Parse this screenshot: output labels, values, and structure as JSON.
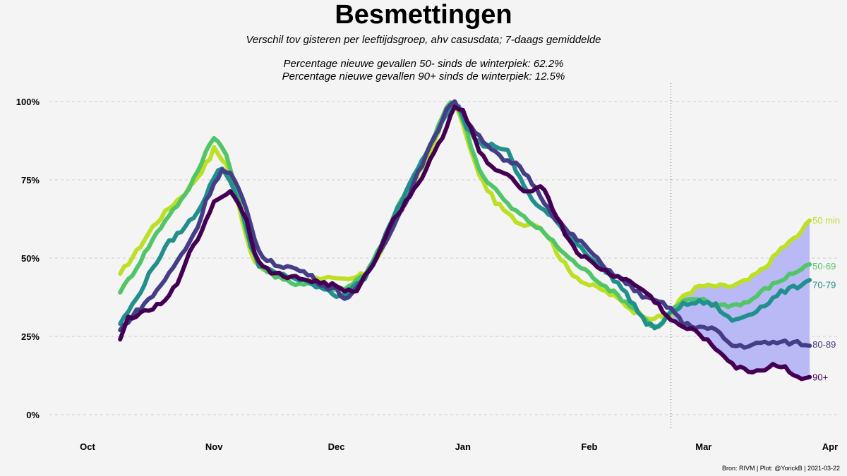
{
  "header": {
    "title": "Besmettingen",
    "subtitle": "Verschil tov gisteren per leeftijdsgroep, ahv casusdata; 7-daags gemiddelde",
    "note1": "Percentage nieuwe gevallen 50- sinds de winterpiek: 62.2%",
    "note2": "Percentage nieuwe gevallen 90+ sinds de winterpiek: 12.5%"
  },
  "footer": {
    "source": "Bron: RIVM | Plot: @YorickB  |  2021-03-22"
  },
  "colors": {
    "g50": "#bddf26",
    "g5069": "#52c569",
    "g7079": "#21908d",
    "g8089": "#433e85",
    "g90": "#440154",
    "ribbon": "#b3b3f5",
    "grid": "#cccccc"
  },
  "chart_data": {
    "type": "line",
    "title": "Besmettingen",
    "xlabel": "",
    "ylabel": "",
    "xlim": [
      0,
      182
    ],
    "ylim": [
      0,
      100
    ],
    "x_ticks": [
      {
        "label": "Oct",
        "value": 0
      },
      {
        "label": "Nov",
        "value": 31
      },
      {
        "label": "Dec",
        "value": 61
      },
      {
        "label": "Jan",
        "value": 92
      },
      {
        "label": "Feb",
        "value": 123
      },
      {
        "label": "Mar",
        "value": 151
      },
      {
        "label": "Apr",
        "value": 182
      }
    ],
    "y_ticks": [
      {
        "label": "0%",
        "value": 0
      },
      {
        "label": "25%",
        "value": 25
      },
      {
        "label": "50%",
        "value": 50
      },
      {
        "label": "75%",
        "value": 75
      },
      {
        "label": "100%",
        "value": 100
      }
    ],
    "vline_day": 143,
    "ribbon_from_day": 143,
    "ribbon_between": [
      "50 min",
      "90+"
    ],
    "series": [
      {
        "name": "50 min",
        "color_key": "g50",
        "end_label": "50 min",
        "points": [
          [
            8,
            45
          ],
          [
            12,
            52
          ],
          [
            16,
            60
          ],
          [
            20,
            66
          ],
          [
            24,
            71
          ],
          [
            27,
            76
          ],
          [
            30,
            82
          ],
          [
            31,
            85
          ],
          [
            34,
            80
          ],
          [
            36,
            72
          ],
          [
            38,
            62
          ],
          [
            40,
            52
          ],
          [
            42,
            47
          ],
          [
            46,
            45
          ],
          [
            50,
            44
          ],
          [
            54,
            43
          ],
          [
            58,
            44
          ],
          [
            61,
            43
          ],
          [
            64,
            43
          ],
          [
            68,
            45
          ],
          [
            72,
            52
          ],
          [
            76,
            65
          ],
          [
            80,
            74
          ],
          [
            84,
            84
          ],
          [
            87,
            94
          ],
          [
            89,
            99
          ],
          [
            91,
            97
          ],
          [
            93,
            88
          ],
          [
            95,
            80
          ],
          [
            97,
            74
          ],
          [
            100,
            68
          ],
          [
            103,
            64
          ],
          [
            106,
            61
          ],
          [
            110,
            61
          ],
          [
            113,
            57
          ],
          [
            115,
            52
          ],
          [
            118,
            46
          ],
          [
            122,
            42
          ],
          [
            126,
            40
          ],
          [
            130,
            37
          ],
          [
            134,
            33
          ],
          [
            138,
            31
          ],
          [
            141,
            31
          ],
          [
            143,
            32
          ],
          [
            146,
            38
          ],
          [
            150,
            41
          ],
          [
            154,
            41
          ],
          [
            158,
            41
          ],
          [
            162,
            43
          ],
          [
            166,
            47
          ],
          [
            170,
            53
          ],
          [
            174,
            57
          ],
          [
            177,
            62
          ]
        ]
      },
      {
        "name": "50-69",
        "color_key": "g5069",
        "end_label": "50-69",
        "points": [
          [
            8,
            39
          ],
          [
            12,
            47
          ],
          [
            16,
            56
          ],
          [
            20,
            64
          ],
          [
            24,
            70
          ],
          [
            27,
            78
          ],
          [
            29,
            84
          ],
          [
            31,
            89
          ],
          [
            34,
            83
          ],
          [
            36,
            74
          ],
          [
            38,
            64
          ],
          [
            40,
            54
          ],
          [
            42,
            48
          ],
          [
            46,
            44
          ],
          [
            50,
            42
          ],
          [
            54,
            42
          ],
          [
            58,
            41
          ],
          [
            61,
            40
          ],
          [
            64,
            41
          ],
          [
            68,
            45
          ],
          [
            72,
            54
          ],
          [
            76,
            66
          ],
          [
            80,
            76
          ],
          [
            84,
            86
          ],
          [
            87,
            95
          ],
          [
            89,
            100
          ],
          [
            91,
            98
          ],
          [
            93,
            90
          ],
          [
            95,
            82
          ],
          [
            97,
            76
          ],
          [
            100,
            72
          ],
          [
            103,
            67
          ],
          [
            106,
            64
          ],
          [
            109,
            61
          ],
          [
            112,
            58
          ],
          [
            115,
            54
          ],
          [
            118,
            50
          ],
          [
            122,
            46
          ],
          [
            126,
            42
          ],
          [
            130,
            38
          ],
          [
            134,
            34
          ],
          [
            137,
            30
          ],
          [
            139,
            28
          ],
          [
            141,
            29
          ],
          [
            143,
            33
          ],
          [
            146,
            36
          ],
          [
            150,
            37
          ],
          [
            154,
            35
          ],
          [
            158,
            35
          ],
          [
            162,
            36
          ],
          [
            166,
            40
          ],
          [
            170,
            43
          ],
          [
            174,
            46
          ],
          [
            177,
            48
          ]
        ]
      },
      {
        "name": "70-79",
        "color_key": "g7079",
        "end_label": "70-79",
        "points": [
          [
            8,
            29
          ],
          [
            12,
            37
          ],
          [
            16,
            47
          ],
          [
            20,
            55
          ],
          [
            24,
            60
          ],
          [
            27,
            65
          ],
          [
            29,
            70
          ],
          [
            31,
            76
          ],
          [
            33,
            79
          ],
          [
            36,
            72
          ],
          [
            38,
            64
          ],
          [
            40,
            54
          ],
          [
            42,
            48
          ],
          [
            46,
            45
          ],
          [
            50,
            44
          ],
          [
            54,
            42
          ],
          [
            58,
            40
          ],
          [
            61,
            38
          ],
          [
            64,
            39
          ],
          [
            68,
            44
          ],
          [
            72,
            54
          ],
          [
            76,
            66
          ],
          [
            80,
            76
          ],
          [
            84,
            86
          ],
          [
            87,
            94
          ],
          [
            89,
            99
          ],
          [
            91,
            99
          ],
          [
            93,
            92
          ],
          [
            95,
            88
          ],
          [
            97,
            86
          ],
          [
            100,
            86
          ],
          [
            103,
            84
          ],
          [
            105,
            78
          ],
          [
            107,
            73
          ],
          [
            110,
            67
          ],
          [
            113,
            64
          ],
          [
            116,
            60
          ],
          [
            119,
            56
          ],
          [
            122,
            52
          ],
          [
            126,
            47
          ],
          [
            130,
            42
          ],
          [
            134,
            35
          ],
          [
            137,
            29
          ],
          [
            139,
            28
          ],
          [
            141,
            29
          ],
          [
            143,
            33
          ],
          [
            146,
            35
          ],
          [
            150,
            36
          ],
          [
            154,
            35
          ],
          [
            156,
            32
          ],
          [
            158,
            30
          ],
          [
            162,
            32
          ],
          [
            166,
            35
          ],
          [
            170,
            39
          ],
          [
            174,
            41
          ],
          [
            177,
            43
          ]
        ]
      },
      {
        "name": "80-89",
        "color_key": "g8089",
        "end_label": "80-89",
        "points": [
          [
            8,
            27
          ],
          [
            12,
            33
          ],
          [
            16,
            38
          ],
          [
            20,
            45
          ],
          [
            24,
            53
          ],
          [
            27,
            60
          ],
          [
            29,
            68
          ],
          [
            31,
            74
          ],
          [
            33,
            78
          ],
          [
            35,
            77
          ],
          [
            37,
            72
          ],
          [
            39,
            65
          ],
          [
            41,
            56
          ],
          [
            43,
            50
          ],
          [
            46,
            48
          ],
          [
            50,
            47
          ],
          [
            54,
            45
          ],
          [
            58,
            41
          ],
          [
            61,
            40
          ],
          [
            63,
            37
          ],
          [
            66,
            40
          ],
          [
            70,
            48
          ],
          [
            74,
            58
          ],
          [
            78,
            68
          ],
          [
            82,
            80
          ],
          [
            86,
            91
          ],
          [
            88,
            98
          ],
          [
            90,
            100
          ],
          [
            93,
            94
          ],
          [
            96,
            89
          ],
          [
            99,
            85
          ],
          [
            102,
            81
          ],
          [
            105,
            80
          ],
          [
            108,
            76
          ],
          [
            111,
            70
          ],
          [
            114,
            64
          ],
          [
            118,
            58
          ],
          [
            122,
            54
          ],
          [
            126,
            48
          ],
          [
            130,
            44
          ],
          [
            134,
            40
          ],
          [
            137,
            37
          ],
          [
            140,
            36
          ],
          [
            143,
            34
          ],
          [
            146,
            29
          ],
          [
            150,
            28
          ],
          [
            154,
            27
          ],
          [
            158,
            22
          ],
          [
            162,
            22
          ],
          [
            166,
            23
          ],
          [
            170,
            23
          ],
          [
            174,
            23
          ],
          [
            177,
            22
          ]
        ]
      },
      {
        "name": "90+",
        "color_key": "g90",
        "end_label": "90+",
        "points": [
          [
            8,
            24
          ],
          [
            10,
            31
          ],
          [
            13,
            32
          ],
          [
            16,
            34
          ],
          [
            19,
            36
          ],
          [
            22,
            42
          ],
          [
            24,
            49
          ],
          [
            27,
            56
          ],
          [
            29,
            62
          ],
          [
            31,
            68
          ],
          [
            33,
            70
          ],
          [
            35,
            71
          ],
          [
            37,
            68
          ],
          [
            39,
            62
          ],
          [
            41,
            52
          ],
          [
            43,
            47
          ],
          [
            46,
            45
          ],
          [
            50,
            44
          ],
          [
            54,
            43
          ],
          [
            58,
            42
          ],
          [
            61,
            41
          ],
          [
            63,
            39
          ],
          [
            66,
            40
          ],
          [
            70,
            48
          ],
          [
            74,
            60
          ],
          [
            78,
            68
          ],
          [
            82,
            76
          ],
          [
            86,
            86
          ],
          [
            88,
            92
          ],
          [
            90,
            99
          ],
          [
            92,
            97
          ],
          [
            94,
            91
          ],
          [
            96,
            84
          ],
          [
            99,
            79
          ],
          [
            102,
            77
          ],
          [
            105,
            74
          ],
          [
            108,
            71
          ],
          [
            110,
            73
          ],
          [
            112,
            72
          ],
          [
            114,
            66
          ],
          [
            117,
            58
          ],
          [
            120,
            52
          ],
          [
            124,
            48
          ],
          [
            128,
            45
          ],
          [
            132,
            43
          ],
          [
            136,
            40
          ],
          [
            140,
            35
          ],
          [
            143,
            30
          ],
          [
            146,
            28
          ],
          [
            150,
            26
          ],
          [
            153,
            22
          ],
          [
            156,
            19
          ],
          [
            159,
            15
          ],
          [
            162,
            14
          ],
          [
            165,
            14
          ],
          [
            168,
            16
          ],
          [
            171,
            15
          ],
          [
            174,
            12
          ],
          [
            177,
            12
          ]
        ]
      }
    ]
  }
}
